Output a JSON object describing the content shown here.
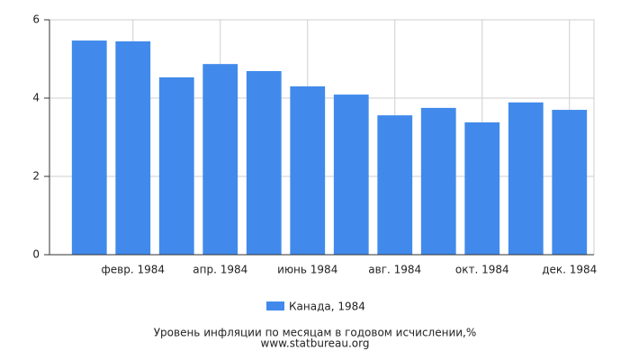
{
  "chart_data": {
    "type": "bar",
    "title": "Уровень инфляции по месяцам в годовом исчислении,%",
    "subtitle": "www.statbureau.org",
    "categories": [
      null,
      "февр. 1984",
      null,
      "апр. 1984",
      null,
      "июнь 1984",
      null,
      "авг. 1984",
      null,
      "окт. 1984",
      null,
      "дек. 1984"
    ],
    "series": [
      {
        "name": "Канада, 1984",
        "color": "#418aeb",
        "values": [
          5.47,
          5.45,
          4.53,
          4.87,
          4.69,
          4.3,
          4.09,
          3.56,
          3.75,
          3.38,
          3.89,
          3.7
        ]
      }
    ],
    "ylim": [
      0,
      6
    ],
    "yticks": [
      0,
      2,
      4,
      6
    ],
    "grid": true
  }
}
